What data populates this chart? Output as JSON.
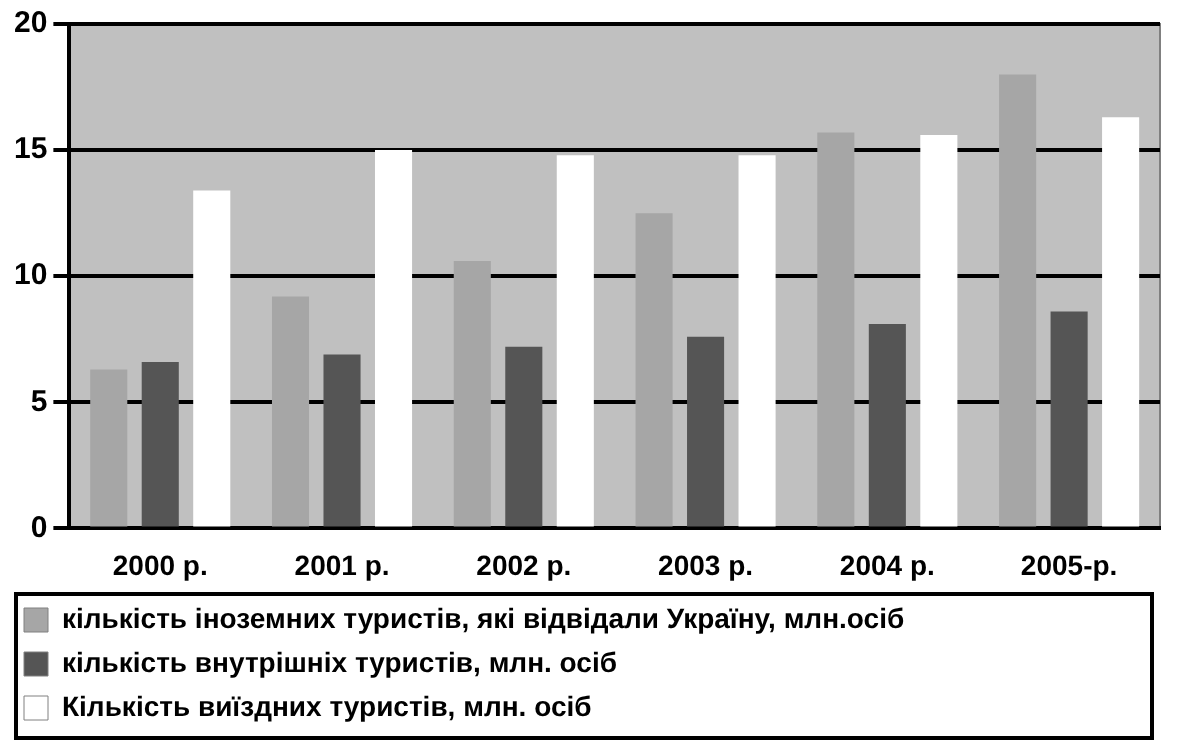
{
  "chart_data": {
    "type": "bar",
    "categories": [
      "2000 р.",
      "2001 р.",
      "2002 р.",
      "2003 р.",
      "2004 р.",
      "2005-р."
    ],
    "series": [
      {
        "name": "кількість іноземних туристів, які відвідали Україну, млн.осіб",
        "color": "#a6a6a6",
        "values": [
          6.3,
          9.2,
          10.6,
          12.5,
          15.7,
          18.0
        ]
      },
      {
        "name": "кількість внутрішніх туристів, млн. осіб",
        "color": "#555555",
        "values": [
          6.6,
          6.9,
          7.2,
          7.6,
          8.1,
          8.6
        ]
      },
      {
        "name": "Кількість виїздних туристів, млн. осіб",
        "color": "#ffffff",
        "values": [
          13.4,
          15.0,
          14.8,
          14.8,
          15.6,
          16.3
        ]
      }
    ],
    "ylim": [
      0,
      20
    ],
    "yticks": [
      0,
      5,
      10,
      15,
      20
    ],
    "grid": "y",
    "legend": "bottom"
  }
}
